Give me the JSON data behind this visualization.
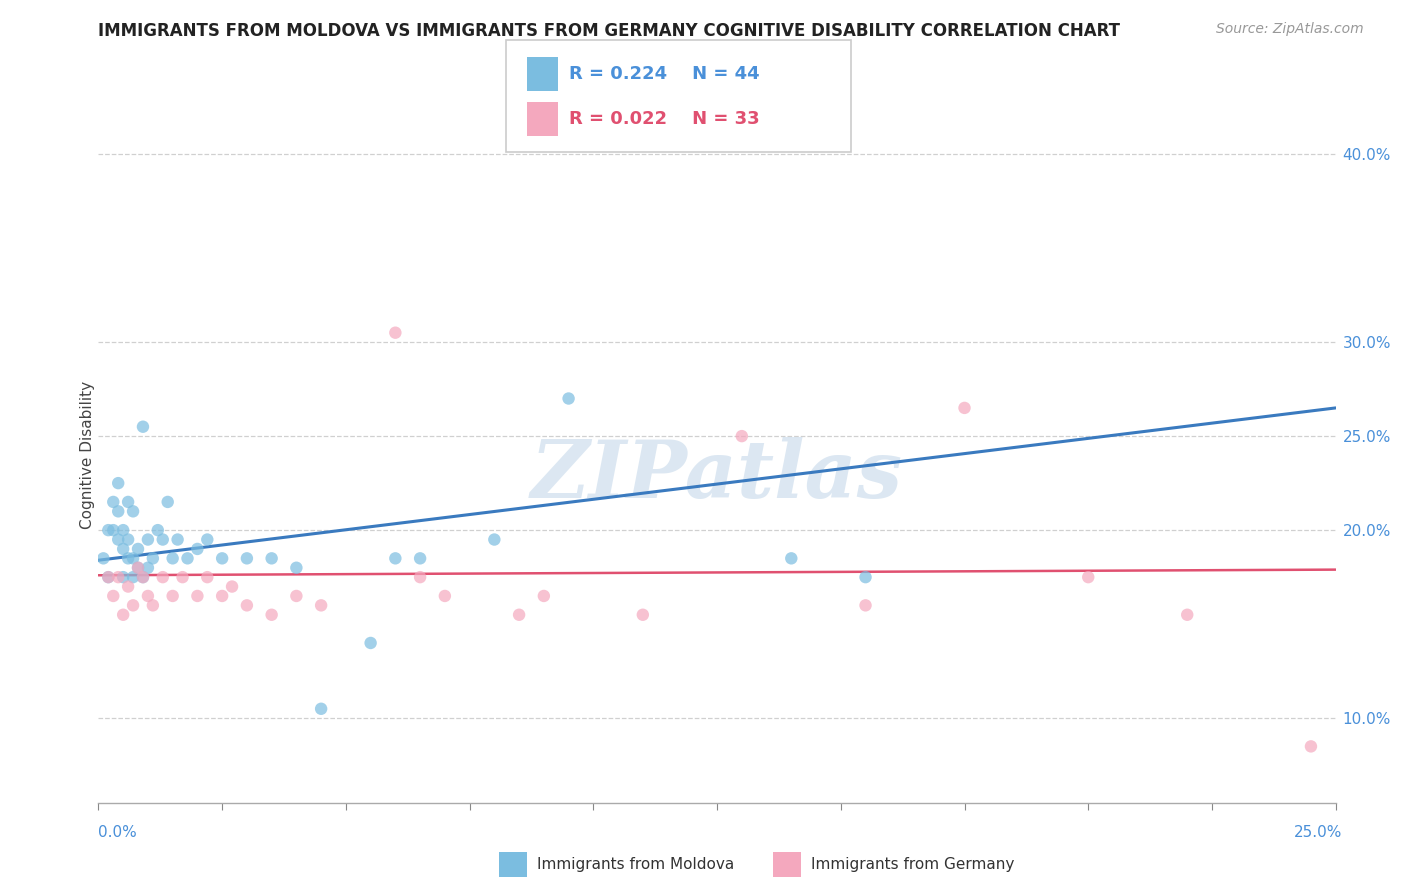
{
  "title": "IMMIGRANTS FROM MOLDOVA VS IMMIGRANTS FROM GERMANY COGNITIVE DISABILITY CORRELATION CHART",
  "source": "Source: ZipAtlas.com",
  "ylabel": "Cognitive Disability",
  "xmin": 0.0,
  "xmax": 0.25,
  "ymin": 0.055,
  "ymax": 0.425,
  "ytick_vals": [
    0.1,
    0.2,
    0.25,
    0.3,
    0.4
  ],
  "ytick_labels": [
    "10.0%",
    "20.0%",
    "25.0%",
    "30.0%",
    "40.0%"
  ],
  "legend_r1": "R = 0.224",
  "legend_n1": "N = 44",
  "legend_r2": "R = 0.022",
  "legend_n2": "N = 33",
  "color_moldova": "#7bbde0",
  "color_germany": "#f4a8be",
  "color_line_moldova": "#3a7abf",
  "color_line_germany": "#e05070",
  "watermark": "ZIPatlas",
  "moldova_x": [
    0.001,
    0.002,
    0.002,
    0.003,
    0.003,
    0.004,
    0.004,
    0.004,
    0.005,
    0.005,
    0.005,
    0.006,
    0.006,
    0.006,
    0.007,
    0.007,
    0.007,
    0.008,
    0.008,
    0.009,
    0.009,
    0.01,
    0.01,
    0.011,
    0.012,
    0.013,
    0.014,
    0.015,
    0.016,
    0.018,
    0.02,
    0.022,
    0.025,
    0.03,
    0.035,
    0.04,
    0.045,
    0.055,
    0.06,
    0.065,
    0.08,
    0.095,
    0.14,
    0.155
  ],
  "moldova_y": [
    0.185,
    0.175,
    0.2,
    0.2,
    0.215,
    0.195,
    0.21,
    0.225,
    0.19,
    0.2,
    0.175,
    0.185,
    0.195,
    0.215,
    0.175,
    0.185,
    0.21,
    0.18,
    0.19,
    0.175,
    0.255,
    0.18,
    0.195,
    0.185,
    0.2,
    0.195,
    0.215,
    0.185,
    0.195,
    0.185,
    0.19,
    0.195,
    0.185,
    0.185,
    0.185,
    0.18,
    0.105,
    0.14,
    0.185,
    0.185,
    0.195,
    0.27,
    0.185,
    0.175
  ],
  "germany_x": [
    0.002,
    0.003,
    0.004,
    0.005,
    0.006,
    0.007,
    0.008,
    0.009,
    0.01,
    0.011,
    0.013,
    0.015,
    0.017,
    0.02,
    0.022,
    0.025,
    0.027,
    0.03,
    0.035,
    0.04,
    0.045,
    0.06,
    0.065,
    0.07,
    0.085,
    0.09,
    0.11,
    0.13,
    0.155,
    0.175,
    0.2,
    0.22,
    0.245
  ],
  "germany_y": [
    0.175,
    0.165,
    0.175,
    0.155,
    0.17,
    0.16,
    0.18,
    0.175,
    0.165,
    0.16,
    0.175,
    0.165,
    0.175,
    0.165,
    0.175,
    0.165,
    0.17,
    0.16,
    0.155,
    0.165,
    0.16,
    0.305,
    0.175,
    0.165,
    0.155,
    0.165,
    0.155,
    0.25,
    0.16,
    0.265,
    0.175,
    0.155,
    0.085
  ]
}
